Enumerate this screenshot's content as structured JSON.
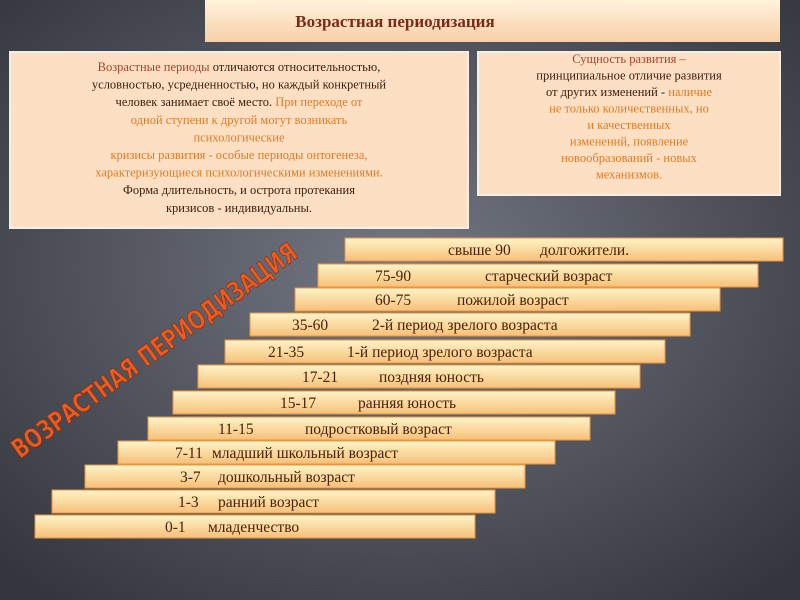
{
  "header": {
    "title": "Возрастная периодизация"
  },
  "left_box": {
    "lines": [
      [
        {
          "text": "Возрастные периоды ",
          "color": "#b0402a"
        },
        {
          "text": "отличаются относительностью,",
          "color": "#3a2010"
        }
      ],
      [
        {
          "text": "условностью, усредненностью, но каждый конкретный",
          "color": "#3a2010"
        }
      ],
      [
        {
          "text": "человек занимает своё место. ",
          "color": "#3a2010"
        },
        {
          "text": "При переходе от",
          "color": "#e07a20"
        }
      ],
      [
        {
          "text": "одной ступени к другой могут возникать",
          "color": "#e07a20"
        }
      ],
      [
        {
          "text": "психологические",
          "color": "#e07a20"
        }
      ],
      [
        {
          "text": "кризисы развития - особые периоды онтогенеза,",
          "color": "#e07a20"
        }
      ],
      [
        {
          "text": "характеризующиеся психологическими изменениями.",
          "color": "#e07a20"
        }
      ],
      [
        {
          "text": "Форма длительность, и острота протекания",
          "color": "#3a2010"
        }
      ],
      [
        {
          "text": "кризисов - индивидуальны.",
          "color": "#3a2010"
        }
      ]
    ]
  },
  "right_box": {
    "lines": [
      [
        {
          "text": "Сущность развития –",
          "color": "#b0402a"
        }
      ],
      [
        {
          "text": "принципиальное отличие развития",
          "color": "#3a2010"
        }
      ],
      [
        {
          "text": "от других изменений - ",
          "color": "#3a2010"
        },
        {
          "text": "наличие",
          "color": "#e07a20"
        }
      ],
      [
        {
          "text": "не только количественных, но",
          "color": "#e07a20"
        }
      ],
      [
        {
          "text": "и качественных",
          "color": "#e07a20"
        }
      ],
      [
        {
          "text": "изменений, появление",
          "color": "#e07a20"
        }
      ],
      [
        {
          "text": "новообразований - новых",
          "color": "#e07a20"
        }
      ],
      [
        {
          "text": "механизмов.",
          "color": "#e07a20"
        }
      ]
    ]
  },
  "side_label": "ВОЗРАСТНАЯ ПЕРИОДИЗАЦИЯ",
  "stairs": [
    {
      "age": "свыше 90",
      "label": "долгожители."
    },
    {
      "age": "75-90",
      "label": "старческий возраст"
    },
    {
      "age": "60-75",
      "label": "пожилой возраст"
    },
    {
      "age": "35-60",
      "label": "2-й период зрелого возраста"
    },
    {
      "age": "21-35",
      "label": "1-й период зрелого возраста"
    },
    {
      "age": "17-21",
      "label": "поздняя юность"
    },
    {
      "age": "15-17",
      "label": "ранняя юность"
    },
    {
      "age": "11-15",
      "label": "подростковый возраст"
    },
    {
      "age": "7-11",
      "label": "младший школьный возраст"
    },
    {
      "age": "3-7",
      "label": "дошкольный возраст"
    },
    {
      "age": "1-3",
      "label": "ранний возраст"
    },
    {
      "age": "0-1",
      "label": "младенчество"
    }
  ]
}
